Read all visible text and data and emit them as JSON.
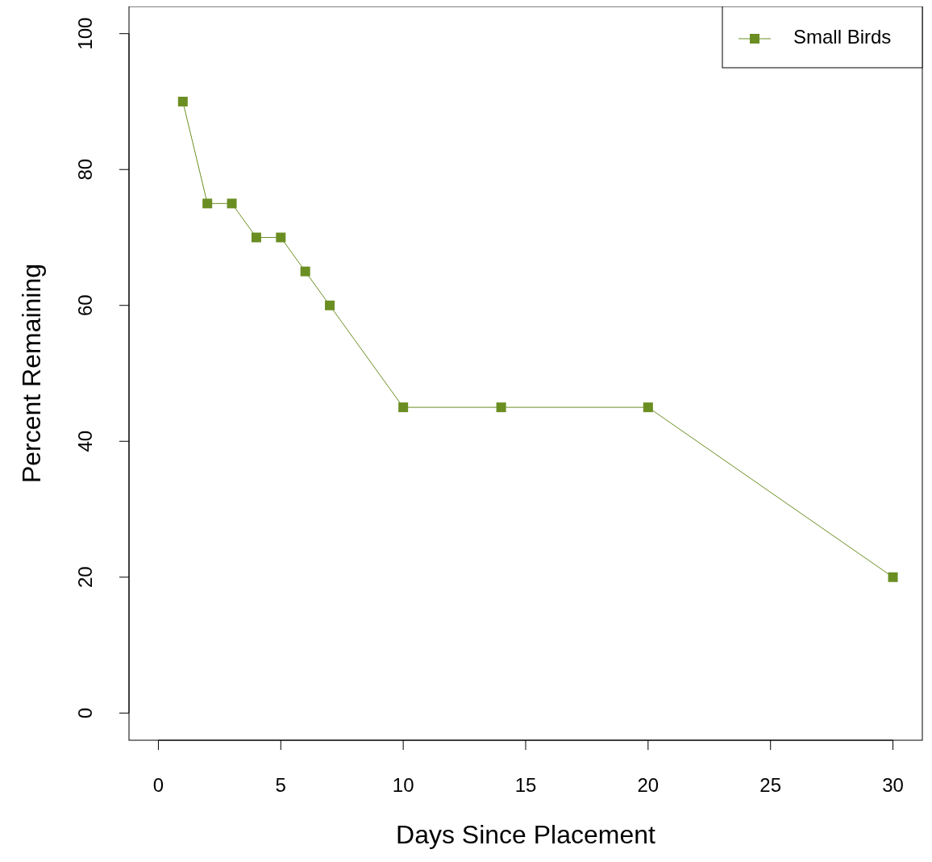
{
  "chart_data": {
    "type": "line",
    "xlabel": "Days Since Placement",
    "ylabel": "Percent Remaining",
    "x": [
      1,
      2,
      3,
      4,
      5,
      6,
      7,
      10,
      14,
      20,
      30
    ],
    "series": [
      {
        "name": "Small Birds",
        "color": "#6b8e23",
        "values": [
          90,
          75,
          75,
          70,
          70,
          65,
          60,
          45,
          45,
          45,
          20
        ]
      }
    ],
    "xlim": [
      -1.2,
      31.2
    ],
    "ylim": [
      -4,
      104
    ],
    "xticks": [
      0,
      5,
      10,
      15,
      20,
      25,
      30
    ],
    "yticks": [
      0,
      20,
      40,
      60,
      80,
      100
    ],
    "grid": false,
    "legend": "top right",
    "marker": "square",
    "line_style": "solid"
  }
}
